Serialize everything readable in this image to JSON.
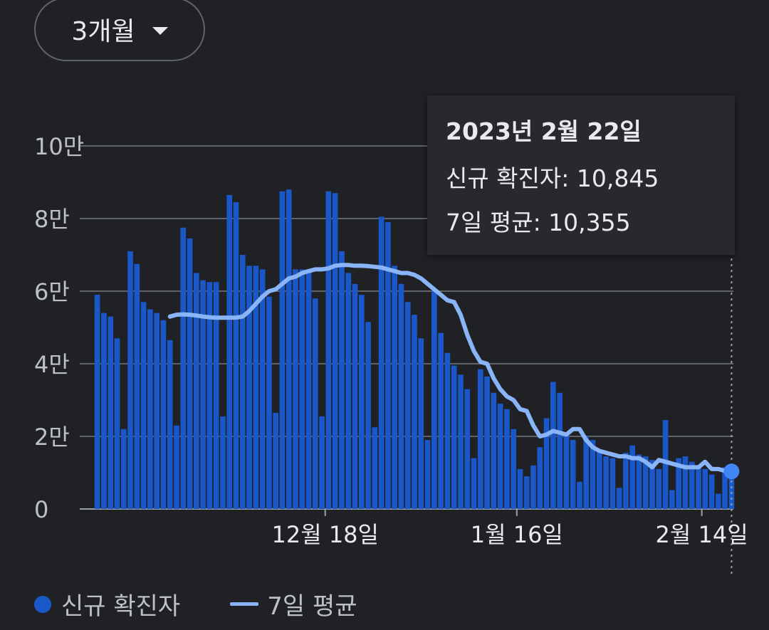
{
  "range_selector": {
    "label": "3개월",
    "icon": "dropdown-caret-icon"
  },
  "tooltip": {
    "date": "2023년 2월 22일",
    "new_cases_line": "신규 확진자: 10,845",
    "avg_line": "7일 평균: 10,355"
  },
  "legend": {
    "bars_label": "신규 확진자",
    "line_label": "7일 평균"
  },
  "colors": {
    "bar": "#1a57c8",
    "line": "#8ab4f8",
    "background": "#202124",
    "grid": "#5f6368"
  },
  "chart_data": {
    "type": "bar",
    "y_tick_labels": [
      "0",
      "2만",
      "4만",
      "6만",
      "8만",
      "10만"
    ],
    "y_ticks": [
      0,
      20000,
      40000,
      60000,
      80000,
      100000
    ],
    "ylim": [
      0,
      100000
    ],
    "x_tick_labels": [
      "12월 18일",
      "1월 16일",
      "2월 14일"
    ],
    "x_tick_index": [
      35,
      64,
      92
    ],
    "x_start_date": "2022-11-22",
    "series": [
      {
        "name": "신규 확진자",
        "type": "bar",
        "values": [
          59000,
          54000,
          53000,
          47000,
          22000,
          71000,
          67500,
          57000,
          55000,
          54000,
          52000,
          46500,
          23000,
          77500,
          74500,
          65000,
          63000,
          62500,
          62500,
          25500,
          86500,
          84500,
          70000,
          67000,
          67000,
          66000,
          58500,
          26500,
          87500,
          88000,
          66000,
          66000,
          66000,
          58000,
          25500,
          87500,
          87000,
          71000,
          65000,
          62000,
          59000,
          51500,
          22500,
          80500,
          79000,
          67000,
          62000,
          57000,
          53500,
          47000,
          19000,
          60000,
          48500,
          43000,
          39500,
          37000,
          33000,
          14000,
          38500,
          36500,
          32000,
          29000,
          27500,
          22000,
          11000,
          9000,
          12000,
          17000,
          25000,
          35000,
          32000,
          21000,
          19000,
          7500,
          20000,
          19000,
          16000,
          14500,
          14000,
          5800,
          15500,
          17500,
          15000,
          14500,
          13500,
          11000,
          24500,
          5200,
          14000,
          14500,
          13000,
          12000,
          11000,
          9500,
          4200,
          11500,
          10845
        ]
      },
      {
        "name": "7일 평균",
        "type": "line",
        "values": [
          53000,
          53500,
          53600,
          53500,
          53300,
          53000,
          52800,
          52700,
          52700,
          52700,
          52700,
          53000,
          54500,
          56500,
          58500,
          60000,
          60500,
          62000,
          63500,
          64000,
          65000,
          65500,
          66000,
          66000,
          66300,
          67000,
          67200,
          67200,
          67000,
          67000,
          66900,
          66700,
          66500,
          66000,
          65500,
          65000,
          65000,
          64500,
          63500,
          62000,
          60500,
          59000,
          57500,
          57000,
          53500,
          48000,
          43500,
          40500,
          40000,
          36000,
          33000,
          31000,
          30000,
          27500,
          27000,
          23000,
          20000,
          20500,
          21500,
          21000,
          20500,
          22000,
          22000,
          19000,
          17000,
          16000,
          15500,
          15000,
          14500,
          14500,
          14000,
          14000,
          13000,
          11500,
          13500,
          13000,
          12500,
          12000,
          11500,
          11500,
          11500,
          13000,
          11000,
          11000,
          10500,
          10355
        ]
      }
    ]
  }
}
